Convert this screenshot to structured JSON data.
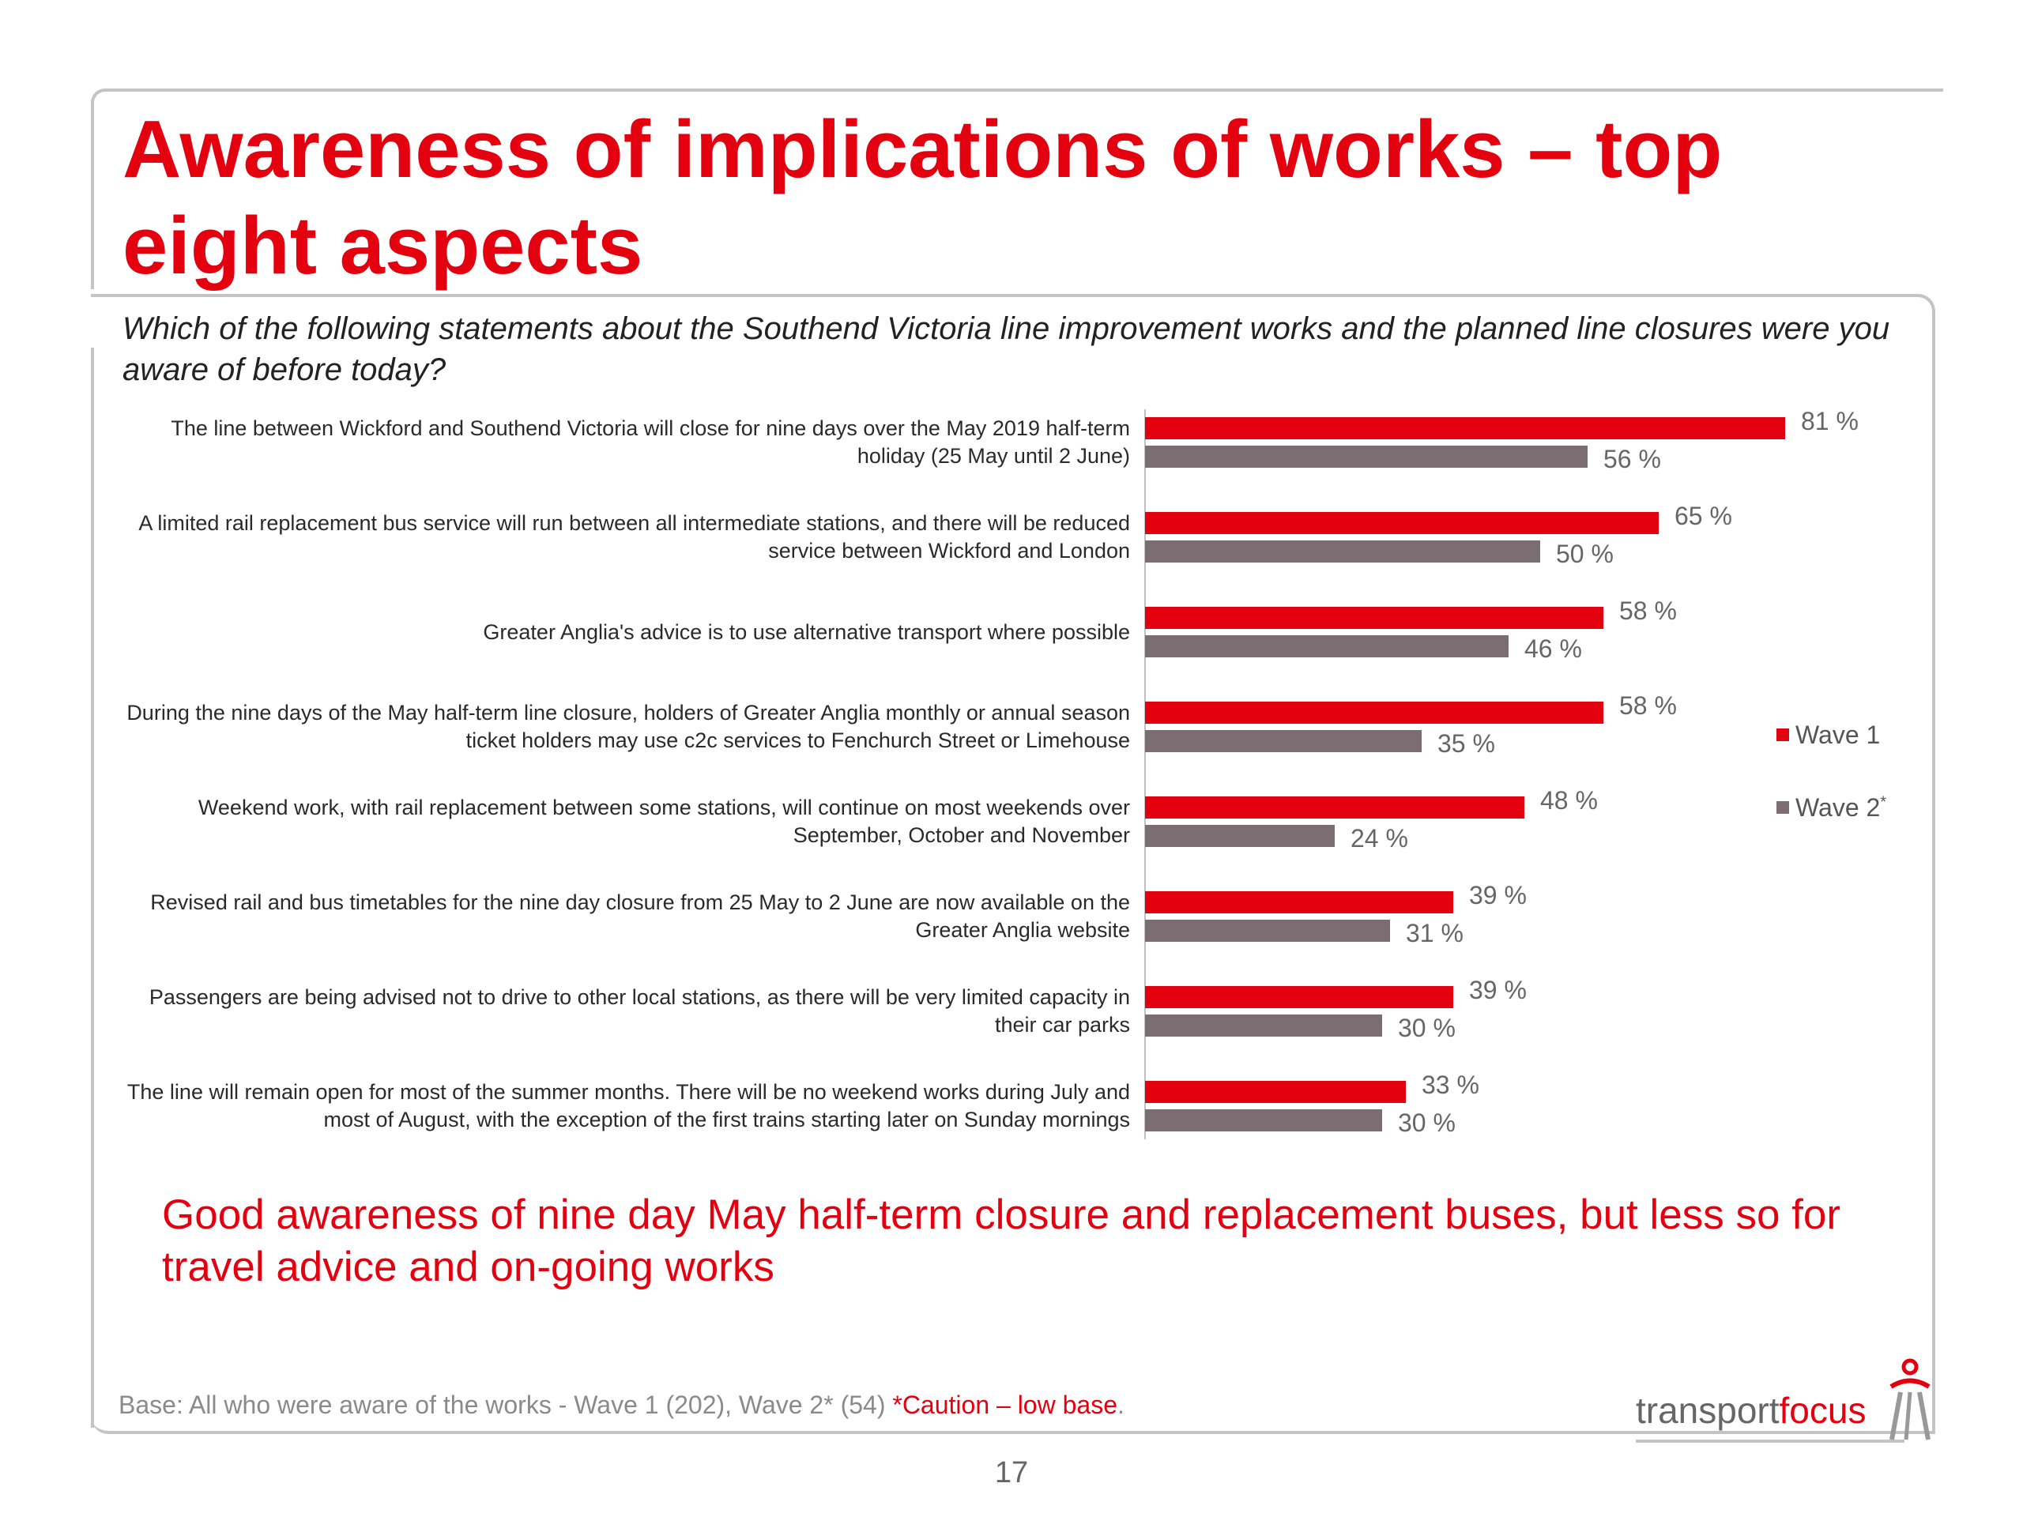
{
  "slide": {
    "title": "Awareness of implications of works – top eight aspects",
    "question": "Which of the following statements about the Southend Victoria line improvement works and the planned line closures were you aware of before today?",
    "conclusion": "Good awareness of nine day May half-term closure and replacement buses, but less so for travel advice and on-going works",
    "base_note": "Base: All who were aware of the works  - Wave 1 (202), Wave 2* (54) ",
    "caution": "*Caution – low base",
    "caution_end": ".",
    "page_number": "17",
    "logo": {
      "word1": "transport",
      "word2": "focus"
    }
  },
  "colors": {
    "wave1": "#e3000f",
    "wave2": "#7a6e73",
    "title": "#e3000f"
  },
  "chart_data": {
    "type": "bar",
    "orientation": "horizontal",
    "categories": [
      "The line between Wickford and Southend Victoria will close for nine days over the May 2019 half-term holiday (25 May until 2 June)",
      "A limited rail replacement bus service will run between all intermediate stations, and there will be reduced service between Wickford and London",
      "Greater Anglia's advice is to use alternative transport where possible",
      "During the nine days of the May half-term line closure, holders of Greater Anglia monthly or annual season ticket holders may use c2c services to Fenchurch Street or Limehouse",
      "Weekend work, with rail replacement between some stations, will continue on most weekends over September, October and November",
      "Revised rail and bus timetables for the nine day closure from 25 May to 2 June are now available on the Greater Anglia website",
      "Passengers are being advised not to drive to other local stations, as there will be very limited capacity in their car parks",
      "The line will remain open for most of the summer months. There will be no weekend works during July and most of August, with the exception of the first trains starting later on Sunday mornings"
    ],
    "series": [
      {
        "name": "Wave 1",
        "values": [
          81,
          65,
          58,
          58,
          48,
          39,
          39,
          33
        ]
      },
      {
        "name": "Wave 2",
        "name_suffix": "*",
        "values": [
          56,
          50,
          46,
          35,
          24,
          31,
          30,
          30
        ]
      }
    ],
    "unit": "%",
    "xlim": [
      0,
      100
    ],
    "legend": "right"
  }
}
